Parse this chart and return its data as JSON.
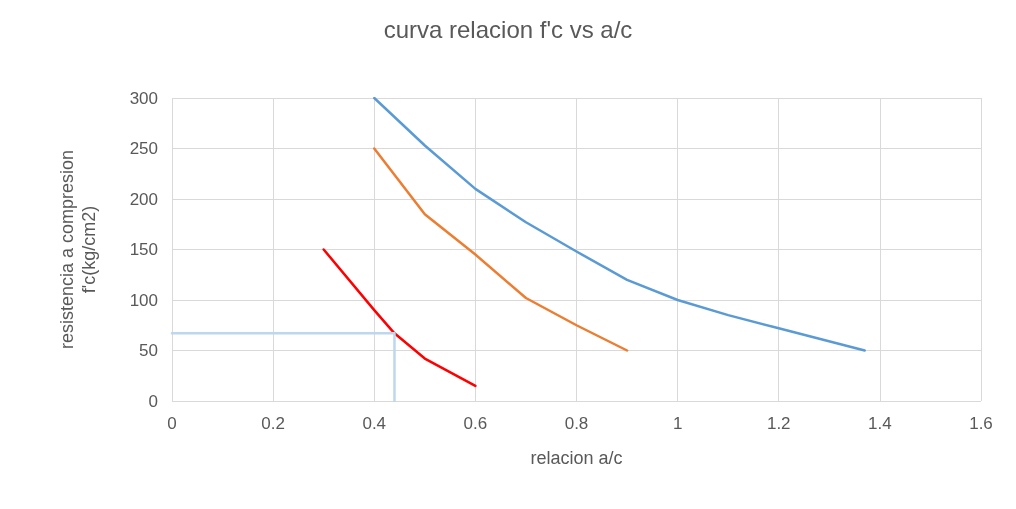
{
  "chart_data": {
    "type": "line",
    "title": "curva relacion f'c vs a/c",
    "xlabel": "relacion a/c",
    "ylabel": "resistencia a compresion f'c(kg/cm2)",
    "xlim": [
      0,
      1.6
    ],
    "xticks": [
      0,
      0.2,
      0.4,
      0.6,
      0.8,
      1,
      1.2,
      1.4,
      1.6
    ],
    "ylim": [
      0,
      300
    ],
    "yticks": [
      0,
      50,
      100,
      150,
      200,
      250,
      300
    ],
    "grid": true,
    "marker": "none",
    "line_style": "solid",
    "series": [
      {
        "color": "#5b9bd5",
        "x": [
          0.4,
          0.5,
          0.6,
          0.7,
          0.8,
          0.9,
          1.0,
          1.1,
          1.2,
          1.37
        ],
        "values": [
          300,
          253,
          210,
          177,
          148,
          120,
          100,
          85,
          72,
          50
        ]
      },
      {
        "color": "#ed7d31",
        "x": [
          0.4,
          0.5,
          0.6,
          0.7,
          0.8,
          0.9
        ],
        "values": [
          250,
          185,
          145,
          102,
          75,
          50
        ]
      },
      {
        "color": "#ff0000",
        "x": [
          0.3,
          0.4,
          0.44,
          0.5,
          0.6
        ],
        "values": [
          150,
          90,
          67,
          42,
          15
        ]
      },
      {
        "color": "#bdd7ee",
        "x": [
          0,
          0.44,
          0.44
        ],
        "values": [
          67,
          67,
          0
        ]
      }
    ]
  }
}
